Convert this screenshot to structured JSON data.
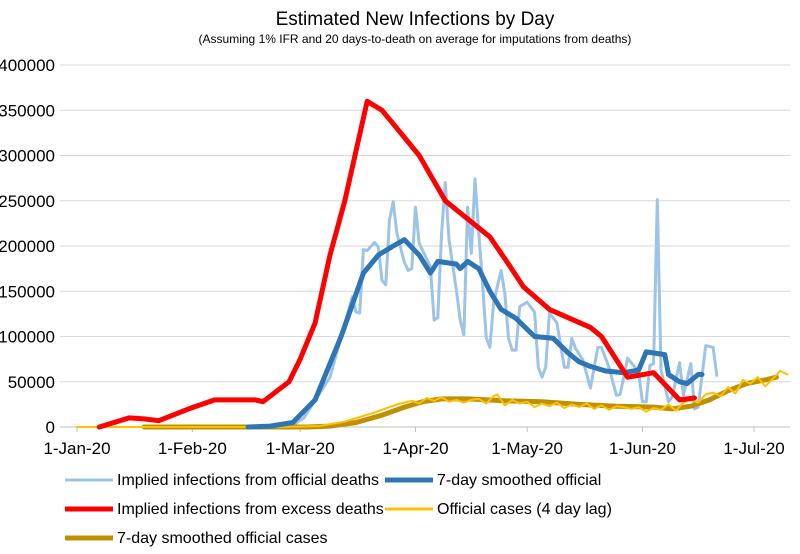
{
  "chart_data": {
    "type": "line",
    "title": "Estimated New Infections by Day",
    "subtitle": "(Assuming 1% IFR and 20 days-to-death on average for imputations from deaths)",
    "xlabel": "",
    "ylabel": "",
    "ylim": [
      0,
      400000
    ],
    "yticks": [
      "0",
      "50000",
      "100000",
      "150000",
      "200000",
      "250000",
      "300000",
      "350000",
      "400000"
    ],
    "xticks": [
      {
        "label": "1-Jan-20",
        "day": 0
      },
      {
        "label": "1-Feb-20",
        "day": 31
      },
      {
        "label": "1-Mar-20",
        "day": 60
      },
      {
        "label": "1-Apr-20",
        "day": 91
      },
      {
        "label": "1-May-20",
        "day": 121
      },
      {
        "label": "1-Jun-20",
        "day": 152
      },
      {
        "label": "1-Jul-20",
        "day": 182
      }
    ],
    "x_unit": "days since 1-Jan-20",
    "grid": true,
    "legend_placement": "bottom",
    "series": [
      {
        "name": "Implied infections from official deaths",
        "color": "#9dc3e6",
        "width": 3,
        "points": [
          [
            46,
            0
          ],
          [
            58,
            2000
          ],
          [
            61,
            10000
          ],
          [
            68,
            55000
          ],
          [
            74,
            144000
          ],
          [
            75,
            127000
          ],
          [
            76,
            126000
          ],
          [
            77,
            196000
          ],
          [
            78,
            195000
          ],
          [
            80,
            204000
          ],
          [
            81,
            199000
          ],
          [
            82,
            162000
          ],
          [
            83,
            157000
          ],
          [
            84,
            229000
          ],
          [
            85,
            249000
          ],
          [
            86,
            214000
          ],
          [
            88,
            182000
          ],
          [
            89,
            173000
          ],
          [
            90,
            175000
          ],
          [
            91,
            243000
          ],
          [
            92,
            203000
          ],
          [
            95,
            177000
          ],
          [
            96,
            118000
          ],
          [
            97,
            121000
          ],
          [
            98,
            214000
          ],
          [
            99,
            270000
          ],
          [
            100,
            207000
          ],
          [
            102,
            151000
          ],
          [
            103,
            118000
          ],
          [
            104,
            102000
          ],
          [
            105,
            243000
          ],
          [
            106,
            192000
          ],
          [
            107,
            274000
          ],
          [
            108,
            214000
          ],
          [
            109,
            159000
          ],
          [
            110,
            99000
          ],
          [
            111,
            88000
          ],
          [
            112,
            137000
          ],
          [
            114,
            173000
          ],
          [
            115,
            148000
          ],
          [
            116,
            98000
          ],
          [
            117,
            85000
          ],
          [
            118,
            85000
          ],
          [
            119,
            133000
          ],
          [
            121,
            138000
          ],
          [
            123,
            127000
          ],
          [
            124,
            66000
          ],
          [
            125,
            55000
          ],
          [
            126,
            66000
          ],
          [
            127,
            126000
          ],
          [
            129,
            115000
          ],
          [
            131,
            66000
          ],
          [
            132,
            66000
          ],
          [
            133,
            98000
          ],
          [
            134,
            87000
          ],
          [
            136,
            74000
          ],
          [
            138,
            43000
          ],
          [
            140,
            88000
          ],
          [
            141,
            88000
          ],
          [
            143,
            66000
          ],
          [
            145,
            35000
          ],
          [
            146,
            36000
          ],
          [
            148,
            76000
          ],
          [
            150,
            66000
          ],
          [
            151,
            60000
          ],
          [
            152,
            28000
          ],
          [
            153,
            28000
          ],
          [
            154,
            68000
          ],
          [
            155,
            70000
          ],
          [
            156,
            251000
          ],
          [
            157,
            63000
          ],
          [
            159,
            28000
          ],
          [
            160,
            33000
          ],
          [
            162,
            71000
          ],
          [
            163,
            35000
          ],
          [
            165,
            70000
          ],
          [
            166,
            20000
          ],
          [
            167,
            22000
          ],
          [
            169,
            90000
          ],
          [
            171,
            88000
          ],
          [
            172,
            57000
          ]
        ]
      },
      {
        "name": "7-day smoothed official",
        "color": "#2e75b6",
        "width": 5,
        "points": [
          [
            46,
            0
          ],
          [
            52,
            1000
          ],
          [
            58,
            5000
          ],
          [
            64,
            30000
          ],
          [
            71,
            100000
          ],
          [
            77,
            170000
          ],
          [
            81,
            190000
          ],
          [
            85,
            200000
          ],
          [
            88,
            207000
          ],
          [
            92,
            190000
          ],
          [
            95,
            170000
          ],
          [
            97,
            183000
          ],
          [
            102,
            180000
          ],
          [
            103,
            175000
          ],
          [
            105,
            183000
          ],
          [
            108,
            175000
          ],
          [
            111,
            150000
          ],
          [
            114,
            130000
          ],
          [
            118,
            120000
          ],
          [
            123,
            100000
          ],
          [
            128,
            98000
          ],
          [
            132,
            82000
          ],
          [
            135,
            72000
          ],
          [
            138,
            67000
          ],
          [
            142,
            62000
          ],
          [
            147,
            60000
          ],
          [
            151,
            63000
          ],
          [
            153,
            83000
          ],
          [
            158,
            80000
          ],
          [
            159,
            58000
          ],
          [
            162,
            50000
          ],
          [
            164,
            48000
          ],
          [
            167,
            58000
          ],
          [
            168,
            58000
          ]
        ]
      },
      {
        "name": "Implied infections from excess deaths",
        "color": "#ff0000",
        "width": 5,
        "points": [
          [
            6,
            0
          ],
          [
            14,
            10000
          ],
          [
            18,
            9000
          ],
          [
            22,
            7000
          ],
          [
            30,
            20000
          ],
          [
            37,
            30000
          ],
          [
            48,
            30000
          ],
          [
            50,
            28000
          ],
          [
            57,
            50000
          ],
          [
            60,
            75000
          ],
          [
            64,
            115000
          ],
          [
            68,
            190000
          ],
          [
            72,
            250000
          ],
          [
            78,
            360000
          ],
          [
            82,
            350000
          ],
          [
            85,
            335000
          ],
          [
            92,
            300000
          ],
          [
            99,
            250000
          ],
          [
            102,
            240000
          ],
          [
            111,
            210000
          ],
          [
            116,
            180000
          ],
          [
            120,
            155000
          ],
          [
            127,
            130000
          ],
          [
            138,
            110000
          ],
          [
            141,
            100000
          ],
          [
            148,
            55000
          ],
          [
            155,
            60000
          ],
          [
            162,
            30000
          ],
          [
            166,
            32000
          ]
        ]
      },
      {
        "name": "Official cases (4 day lag)",
        "color": "#ffc000",
        "width": 2,
        "points": [
          [
            0,
            0
          ],
          [
            55,
            0
          ],
          [
            65,
            1000
          ],
          [
            72,
            6000
          ],
          [
            80,
            16000
          ],
          [
            86,
            25000
          ],
          [
            90,
            29000
          ],
          [
            92,
            26000
          ],
          [
            94,
            32000
          ],
          [
            96,
            29000
          ],
          [
            98,
            33000
          ],
          [
            100,
            28000
          ],
          [
            102,
            30000
          ],
          [
            104,
            27000
          ],
          [
            106,
            30000
          ],
          [
            108,
            31000
          ],
          [
            110,
            26000
          ],
          [
            112,
            34000
          ],
          [
            113,
            36000
          ],
          [
            115,
            24000
          ],
          [
            117,
            30000
          ],
          [
            119,
            26000
          ],
          [
            121,
            28000
          ],
          [
            123,
            22000
          ],
          [
            125,
            26000
          ],
          [
            127,
            23000
          ],
          [
            129,
            27000
          ],
          [
            131,
            21000
          ],
          [
            133,
            25000
          ],
          [
            135,
            22000
          ],
          [
            137,
            26000
          ],
          [
            139,
            20000
          ],
          [
            141,
            24000
          ],
          [
            143,
            19000
          ],
          [
            145,
            23000
          ],
          [
            147,
            22000
          ],
          [
            149,
            20000
          ],
          [
            151,
            22000
          ],
          [
            153,
            17000
          ],
          [
            155,
            21000
          ],
          [
            157,
            19000
          ],
          [
            159,
            25000
          ],
          [
            161,
            18000
          ],
          [
            163,
            27000
          ],
          [
            165,
            30000
          ],
          [
            167,
            27000
          ],
          [
            169,
            36000
          ],
          [
            171,
            38000
          ],
          [
            173,
            34000
          ],
          [
            175,
            44000
          ],
          [
            177,
            37000
          ],
          [
            179,
            52000
          ],
          [
            181,
            48000
          ],
          [
            183,
            55000
          ],
          [
            185,
            45000
          ],
          [
            187,
            53000
          ],
          [
            189,
            62000
          ],
          [
            191,
            58000
          ]
        ]
      },
      {
        "name": "7-day smoothed official cases",
        "color": "#bf9000",
        "width": 5,
        "points": [
          [
            18,
            0
          ],
          [
            62,
            0
          ],
          [
            68,
            1000
          ],
          [
            75,
            5000
          ],
          [
            82,
            13000
          ],
          [
            88,
            22000
          ],
          [
            93,
            28000
          ],
          [
            98,
            31000
          ],
          [
            105,
            31000
          ],
          [
            115,
            29000
          ],
          [
            125,
            28000
          ],
          [
            135,
            25000
          ],
          [
            145,
            23000
          ],
          [
            155,
            22000
          ],
          [
            160,
            20000
          ],
          [
            165,
            23000
          ],
          [
            170,
            30000
          ],
          [
            175,
            40000
          ],
          [
            180,
            48000
          ],
          [
            185,
            52000
          ],
          [
            188,
            55000
          ]
        ]
      }
    ]
  }
}
